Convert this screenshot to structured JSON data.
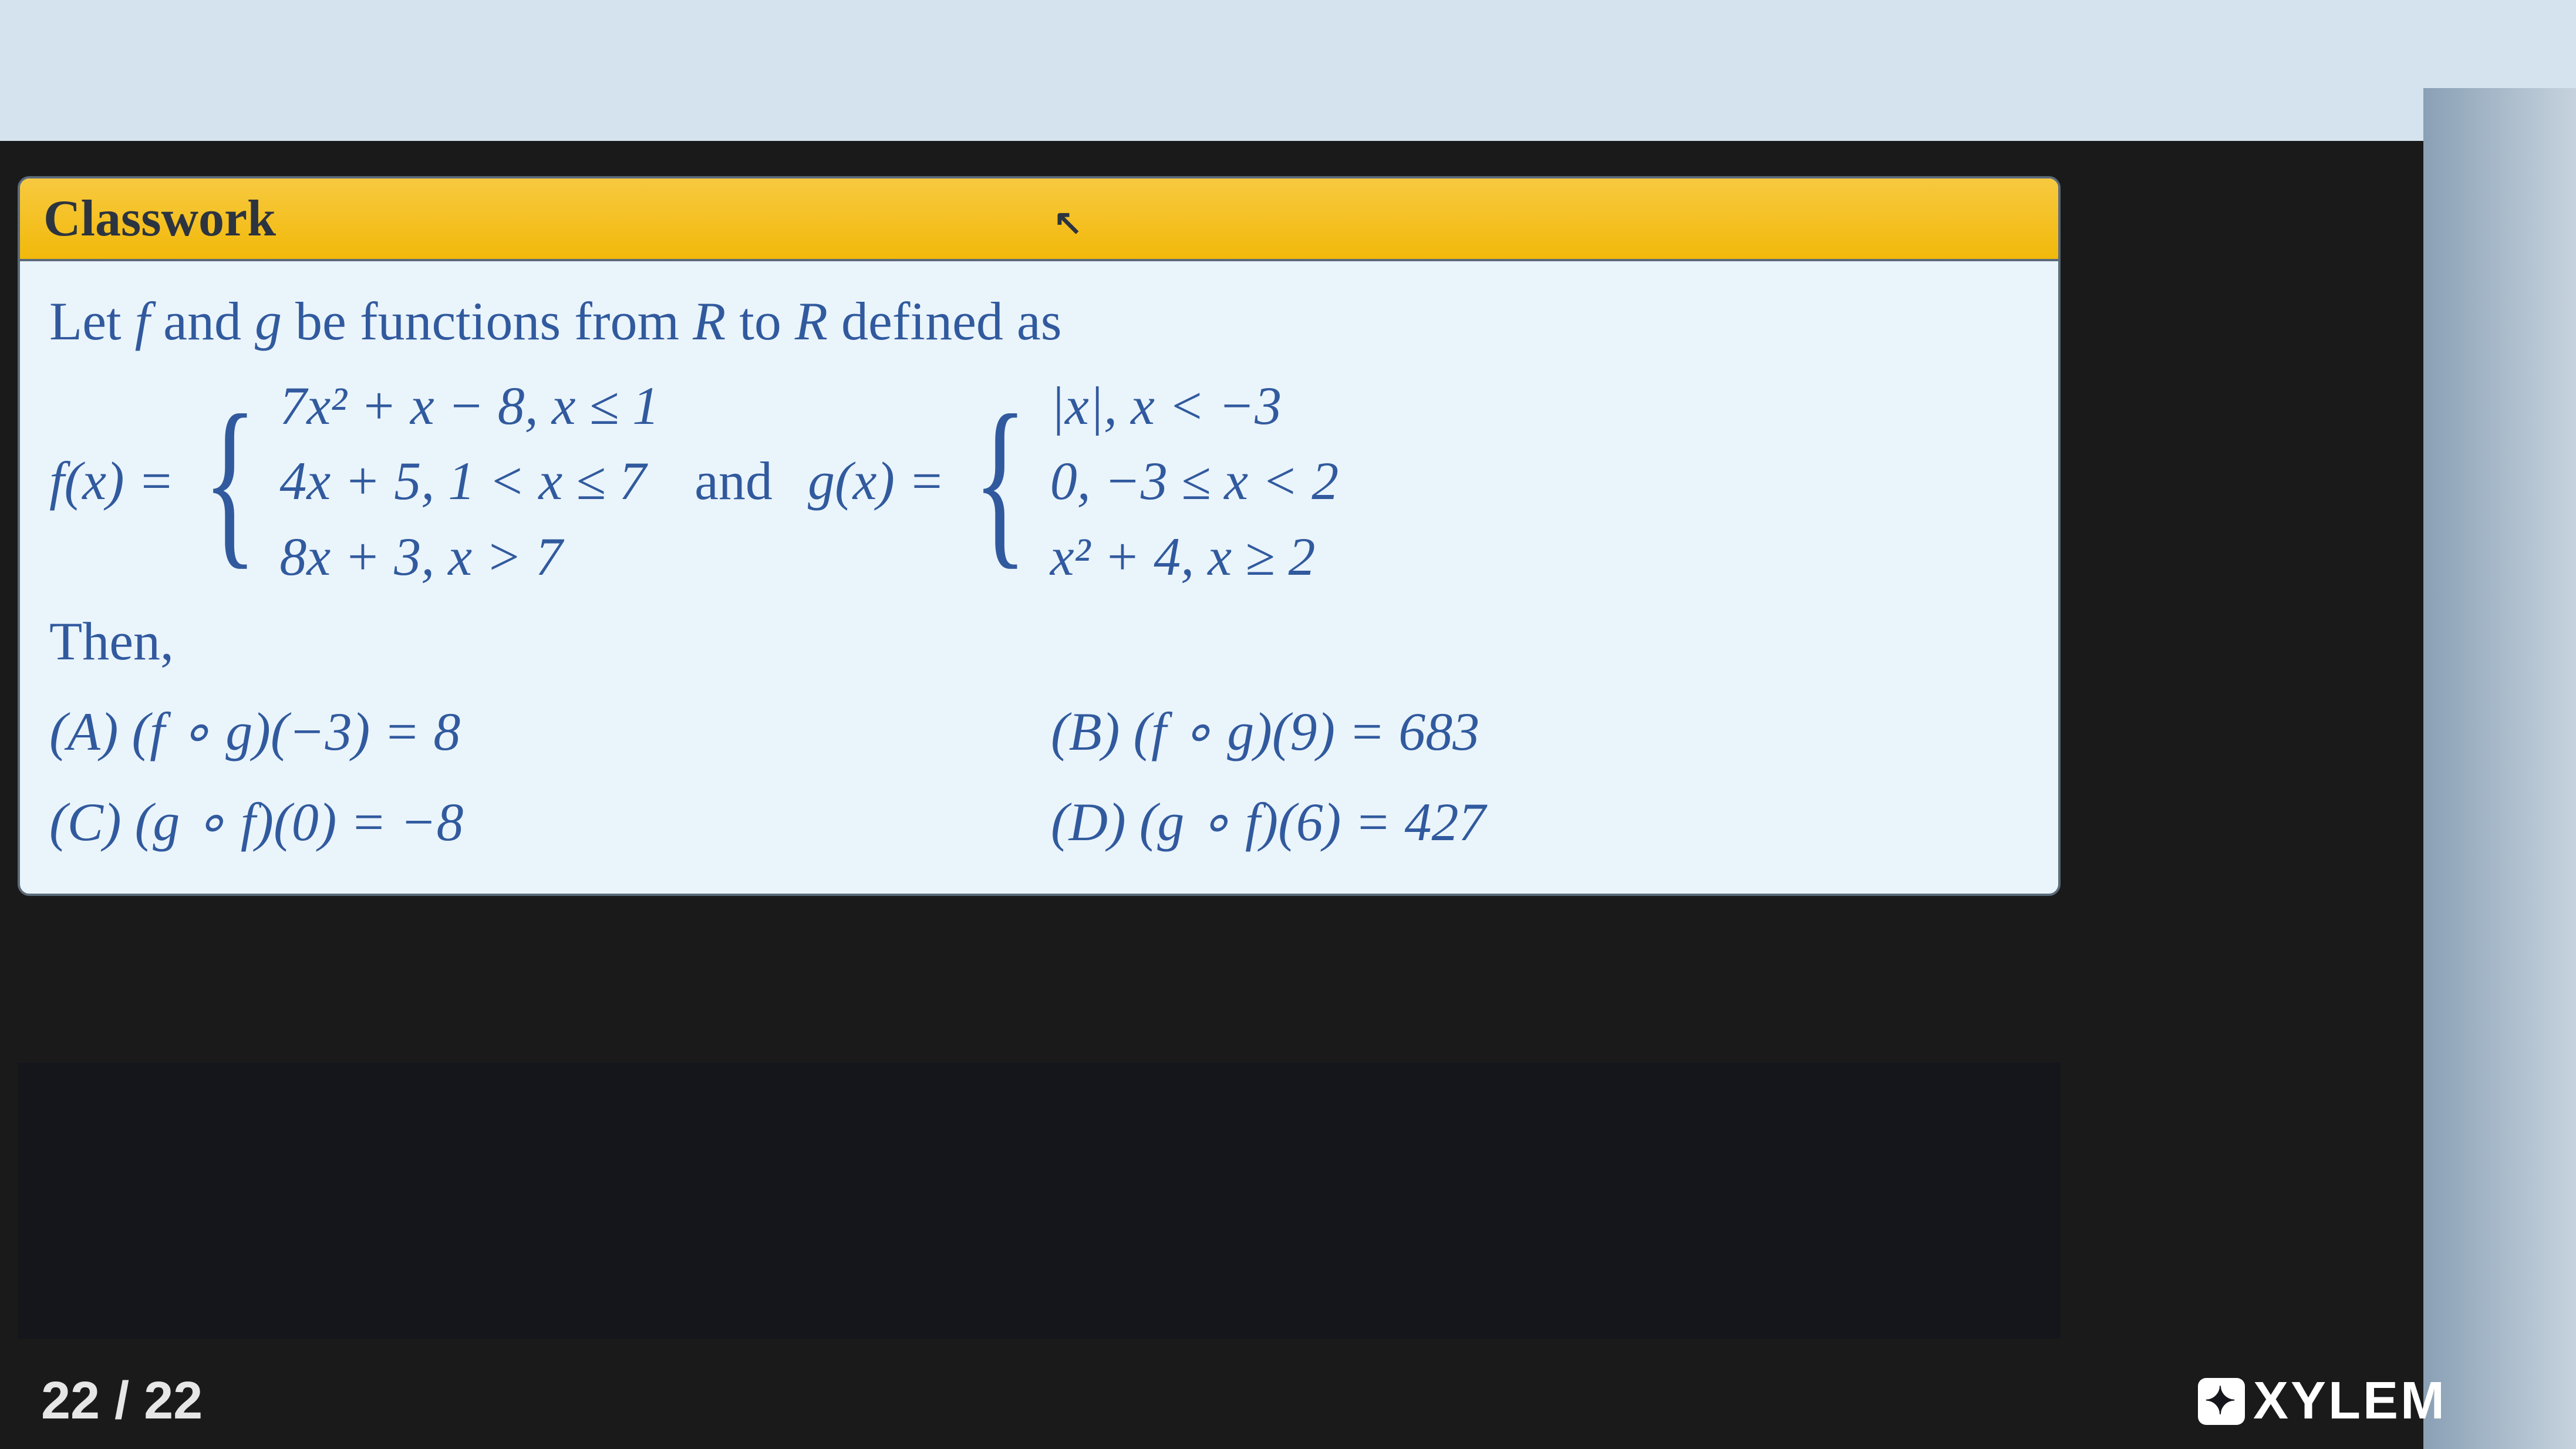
{
  "colors": {
    "topbar": "#d5e3ee",
    "slide_bg": "#eaf4fb",
    "slide_border": "#5b6b7a",
    "titlebar_top": "#f7c940",
    "titlebar_bottom": "#f2b90a",
    "text_math": "#315a9e",
    "dark": "#14161c",
    "page_text": "#e6e6e6"
  },
  "title": "Classwork",
  "intro_prefix": "Let ",
  "intro_f": "f",
  "intro_mid1": " and ",
  "intro_g": "g",
  "intro_mid2": " be functions from ",
  "intro_R1": "R",
  "intro_mid3": " to ",
  "intro_R2": "R",
  "intro_suffix": " defined as",
  "f_label": "f(x) = ",
  "f_cases": {
    "c1": "7x² + x − 8, x ≤ 1",
    "c2": "4x + 5, 1 < x ≤ 7",
    "c3": "8x + 3, x > 7"
  },
  "and_word": "and",
  "g_label": "g(x) = ",
  "g_cases": {
    "c1": "|x|, x < −3",
    "c2": "0, −3 ≤ x < 2",
    "c3": "x² + 4, x ≥ 2"
  },
  "then": "Then,",
  "options": {
    "A": "(A) (f ∘ g)(−3) = 8",
    "B": "(B) (f ∘ g)(9) = 683",
    "C": "(C) (g ∘ f)(0) = −8",
    "D": "(D) (g ∘ f)(6) = 427"
  },
  "page": "22 / 22",
  "logo": "XYLEM",
  "logo_glyph": "✦"
}
